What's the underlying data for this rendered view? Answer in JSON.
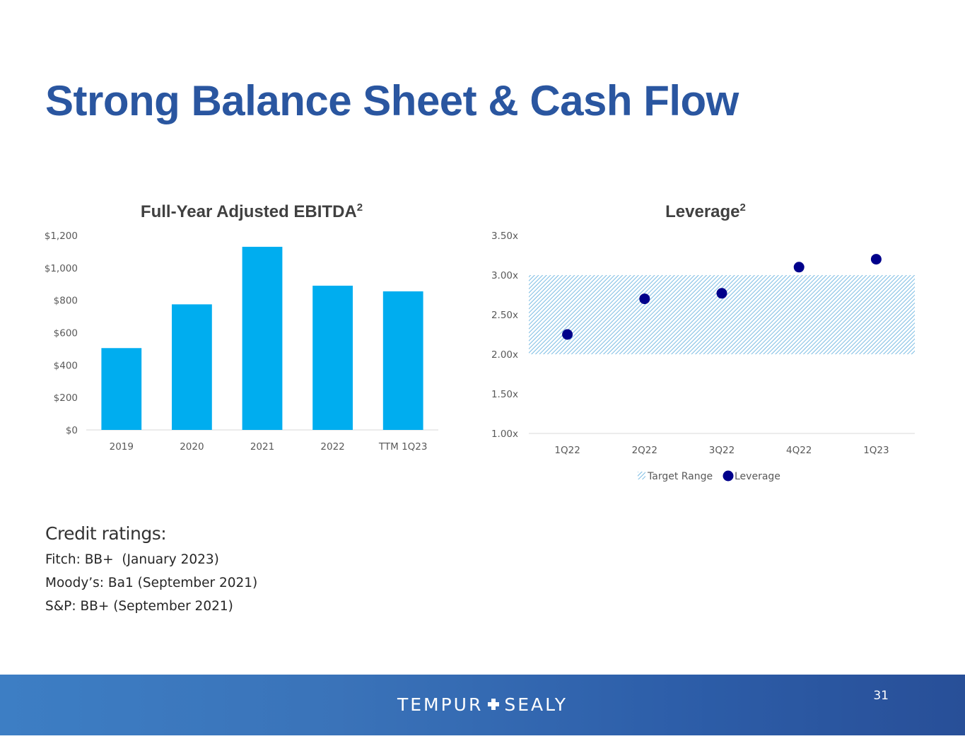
{
  "slide": {
    "title": "Strong Balance Sheet & Cash Flow",
    "page_number": "31"
  },
  "credit_ratings": {
    "heading": "Credit ratings:",
    "lines": [
      "Fitch: BB+  (January 2023)",
      "Moody’s: Ba1 (September 2021)",
      "S&P: BB+ (September 2021)"
    ]
  },
  "footer": {
    "brand_left": "TEMPUR",
    "brand_right": "SEALY",
    "background": "#2d5ea9"
  },
  "colors": {
    "title": "#2a56a0",
    "bar": "#00adef",
    "target_range": "#5aabdc",
    "leverage_marker": "#00008b"
  },
  "chart_data": [
    {
      "type": "bar",
      "title": "Full-Year Adjusted EBITDA",
      "title_superscript": "2",
      "categories": [
        "2019",
        "2020",
        "2021",
        "2022",
        "TTM 1Q23"
      ],
      "values": [
        505,
        775,
        1130,
        890,
        855
      ],
      "ylim": [
        0,
        1200
      ],
      "yticks": [
        0,
        200,
        400,
        600,
        800,
        1000,
        1200
      ],
      "ytick_labels": [
        "$0",
        "$200",
        "$400",
        "$600",
        "$800",
        "$1,000",
        "$1,200"
      ],
      "xlabel": "",
      "ylabel": "",
      "grid": false,
      "legend": "none"
    },
    {
      "type": "scatter",
      "title": "Leverage",
      "title_superscript": "2",
      "categories": [
        "1Q22",
        "2Q22",
        "3Q22",
        "4Q22",
        "1Q23"
      ],
      "series": [
        {
          "name": "Target Range",
          "kind": "band",
          "low": 2.0,
          "high": 3.0
        },
        {
          "name": "Leverage",
          "kind": "marker",
          "values": [
            2.25,
            2.7,
            2.77,
            3.1,
            3.2
          ]
        }
      ],
      "ylim": [
        1.0,
        3.5
      ],
      "yticks": [
        1.0,
        1.5,
        2.0,
        2.5,
        3.0,
        3.5
      ],
      "ytick_labels": [
        "1.00x",
        "1.50x",
        "2.00x",
        "2.50x",
        "3.00x",
        "3.50x"
      ],
      "xlabel": "",
      "ylabel": "",
      "grid": false,
      "legend": "bottom"
    }
  ]
}
